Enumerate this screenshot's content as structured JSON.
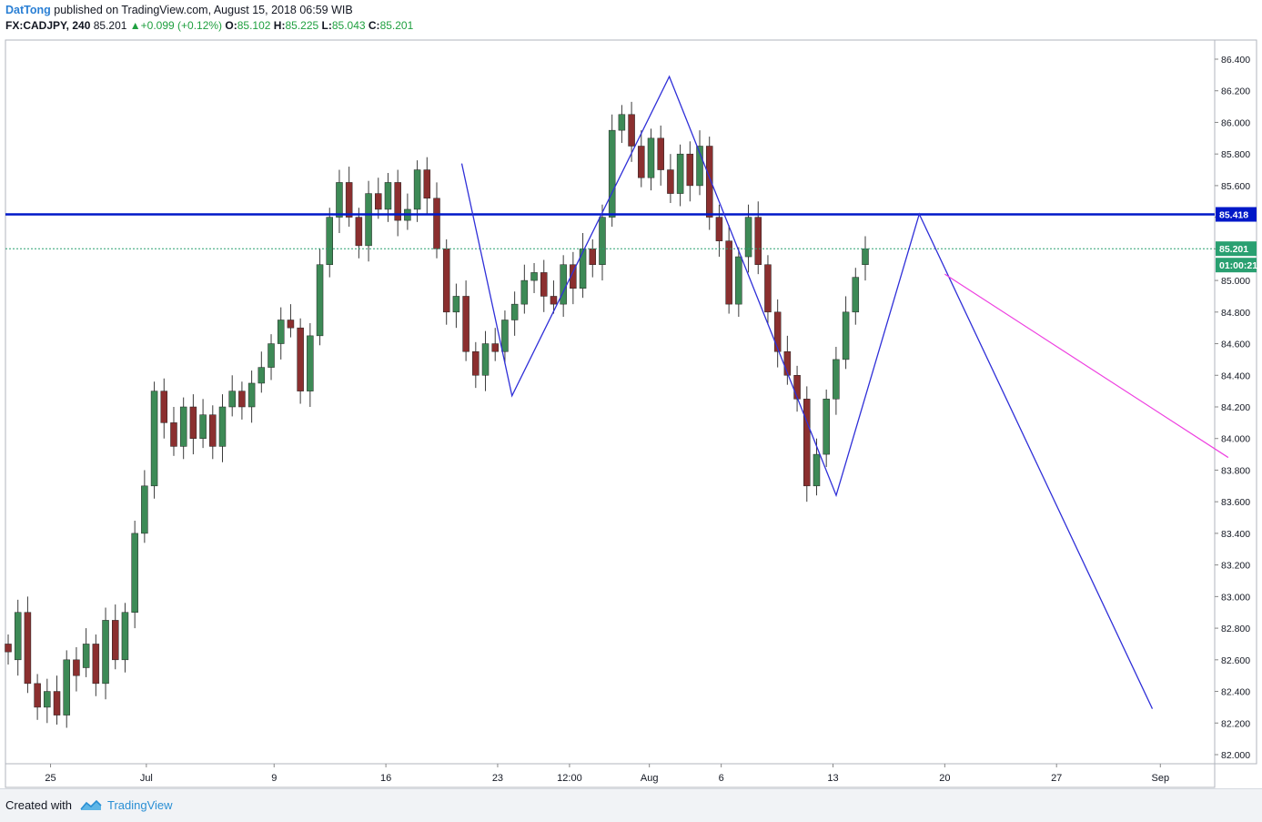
{
  "header": {
    "author": "DatTong",
    "published_text": "published on TradingView.com, August 15, 2018 06:59 WIB",
    "symbol": "FX:CADJPY, 240",
    "last": "85.201",
    "change": "+0.099 (+0.12%)",
    "o_label": "O:",
    "o_value": "85.102",
    "h_label": "H:",
    "h_value": "85.225",
    "l_label": "L:",
    "l_value": "85.043",
    "c_label": "C:",
    "c_value": "85.201"
  },
  "footer": {
    "created_with": "Created with",
    "brand": "TradingView"
  },
  "colors": {
    "up": "#3d8a56",
    "down": "#8b2f2f",
    "pattern_line": "#2f2fd8",
    "resistance": "#0018c8",
    "projection": "#ee40e0",
    "price_tag": "#2aa071"
  },
  "chart_data": {
    "type": "candlestick",
    "ylim": [
      82.0,
      86.4
    ],
    "y_ticks": [
      "86.400",
      "86.200",
      "86.000",
      "85.800",
      "85.600",
      "85.400",
      "85.200",
      "85.000",
      "84.800",
      "84.600",
      "84.400",
      "84.200",
      "84.000",
      "83.800",
      "83.600",
      "83.400",
      "83.200",
      "83.000",
      "82.800",
      "82.600",
      "82.400",
      "82.200",
      "82.000"
    ],
    "x_ticks": [
      {
        "label": "25",
        "t": 1.0
      },
      {
        "label": "Jul",
        "t": 7.0
      },
      {
        "label": "9",
        "t": 15.0
      },
      {
        "label": "16",
        "t": 22.0
      },
      {
        "label": "23",
        "t": 29.0
      },
      {
        "label": "12:00",
        "t": 33.5
      },
      {
        "label": "Aug",
        "t": 38.5
      },
      {
        "label": "6",
        "t": 43.0
      },
      {
        "label": "13",
        "t": 50.0
      },
      {
        "label": "20",
        "t": 57.0
      },
      {
        "label": "27",
        "t": 64.0
      },
      {
        "label": "Sep",
        "t": 70.5
      }
    ],
    "price_tags": [
      {
        "label": "85.418",
        "value": 85.418,
        "kind": "resistance"
      },
      {
        "label": "85.201",
        "value": 85.201,
        "kind": "last"
      },
      {
        "label": "01:00:21",
        "value": 85.1,
        "kind": "countdown"
      }
    ],
    "resistance_level": 85.418,
    "last_price": 85.201,
    "pattern_path": [
      {
        "t": 26.75,
        "v": 85.74
      },
      {
        "t": 29.9,
        "v": 84.27
      },
      {
        "t": 39.75,
        "v": 86.29
      },
      {
        "t": 50.2,
        "v": 83.64
      },
      {
        "t": 55.4,
        "v": 85.42
      },
      {
        "t": 70.0,
        "v": 82.29
      }
    ],
    "projection_line": [
      {
        "t": 57.0,
        "v": 85.04
      },
      {
        "t": 74.75,
        "v": 83.88
      }
    ],
    "candles": [
      [
        82.7,
        82.65
      ],
      [
        82.6,
        82.9
      ],
      [
        82.9,
        82.45
      ],
      [
        82.45,
        82.3
      ],
      [
        82.3,
        82.4
      ],
      [
        82.4,
        82.25
      ],
      [
        82.25,
        82.6
      ],
      [
        82.6,
        82.5
      ],
      [
        82.55,
        82.7
      ],
      [
        82.7,
        82.45
      ],
      [
        82.45,
        82.85
      ],
      [
        82.85,
        82.6
      ],
      [
        82.6,
        82.9
      ],
      [
        82.9,
        83.4
      ],
      [
        83.4,
        83.7
      ],
      [
        83.7,
        84.3
      ],
      [
        84.3,
        84.1
      ],
      [
        84.1,
        83.95
      ],
      [
        83.95,
        84.2
      ],
      [
        84.2,
        84.0
      ],
      [
        84.0,
        84.15
      ],
      [
        84.15,
        83.95
      ],
      [
        83.95,
        84.2
      ],
      [
        84.2,
        84.3
      ],
      [
        84.3,
        84.2
      ],
      [
        84.2,
        84.35
      ],
      [
        84.35,
        84.45
      ],
      [
        84.45,
        84.6
      ],
      [
        84.6,
        84.75
      ],
      [
        84.75,
        84.7
      ],
      [
        84.7,
        84.3
      ],
      [
        84.3,
        84.65
      ],
      [
        84.65,
        85.1
      ],
      [
        85.1,
        85.4
      ],
      [
        85.4,
        85.62
      ],
      [
        85.62,
        85.4
      ],
      [
        85.4,
        85.22
      ],
      [
        85.22,
        85.55
      ],
      [
        85.55,
        85.45
      ],
      [
        85.45,
        85.62
      ],
      [
        85.62,
        85.38
      ],
      [
        85.38,
        85.45
      ],
      [
        85.45,
        85.7
      ],
      [
        85.7,
        85.52
      ],
      [
        85.52,
        85.2
      ],
      [
        85.2,
        84.8
      ],
      [
        84.8,
        84.9
      ],
      [
        84.9,
        84.55
      ],
      [
        84.55,
        84.4
      ],
      [
        84.4,
        84.6
      ],
      [
        84.6,
        84.55
      ],
      [
        84.55,
        84.75
      ],
      [
        84.75,
        84.85
      ],
      [
        84.85,
        85.0
      ],
      [
        85.0,
        85.05
      ],
      [
        85.05,
        84.9
      ],
      [
        84.9,
        84.85
      ],
      [
        84.85,
        85.1
      ],
      [
        85.1,
        84.95
      ],
      [
        84.95,
        85.2
      ],
      [
        85.2,
        85.1
      ],
      [
        85.1,
        85.4
      ],
      [
        85.4,
        85.95
      ],
      [
        85.95,
        86.05
      ],
      [
        86.05,
        85.85
      ],
      [
        85.85,
        85.65
      ],
      [
        85.65,
        85.9
      ],
      [
        85.9,
        85.7
      ],
      [
        85.7,
        85.55
      ],
      [
        85.55,
        85.8
      ],
      [
        85.8,
        85.6
      ],
      [
        85.6,
        85.85
      ],
      [
        85.85,
        85.4
      ],
      [
        85.4,
        85.25
      ],
      [
        85.25,
        84.85
      ],
      [
        84.85,
        85.15
      ],
      [
        85.15,
        85.4
      ],
      [
        85.4,
        85.1
      ],
      [
        85.1,
        84.8
      ],
      [
        84.8,
        84.55
      ],
      [
        84.55,
        84.4
      ],
      [
        84.4,
        84.25
      ],
      [
        84.25,
        83.7
      ],
      [
        83.7,
        83.9
      ],
      [
        83.9,
        84.25
      ],
      [
        84.25,
        84.5
      ],
      [
        84.5,
        84.8
      ],
      [
        84.8,
        85.02
      ],
      [
        85.1,
        85.2
      ]
    ]
  }
}
